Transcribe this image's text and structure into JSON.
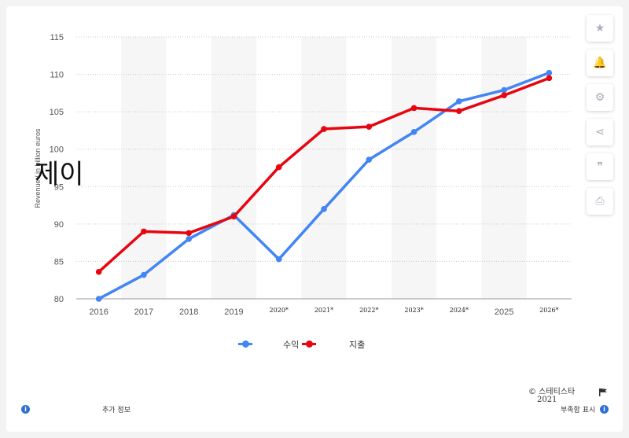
{
  "overlay_text": "제이",
  "toolbar": {
    "items": [
      {
        "icon": "star-icon",
        "glyph": "★"
      },
      {
        "icon": "bell-icon",
        "glyph": "🔔"
      },
      {
        "icon": "gear-icon",
        "glyph": "⚙"
      },
      {
        "icon": "share-icon",
        "glyph": "⋖"
      },
      {
        "icon": "quote-icon",
        "glyph": "❞"
      },
      {
        "icon": "print-icon",
        "glyph": "⎙"
      }
    ]
  },
  "legend": {
    "series1_label": "수익",
    "series2_label": "지출"
  },
  "footer": {
    "copyright": "© 스테티스타",
    "year": "2021",
    "additional_info": "추가 정보",
    "show_source": "부족함 표시"
  },
  "colors": {
    "series1": "#4285f4",
    "series2": "#e8050f",
    "grid": "#c8c8c8",
    "band": "#f6f6f6"
  },
  "chart_data": {
    "type": "line",
    "title": "",
    "ylabel": "Revenue / in billion euros",
    "xlabel": "",
    "ylim": [
      80,
      115
    ],
    "yticks": [
      80,
      85,
      90,
      95,
      100,
      105,
      110,
      115
    ],
    "categories": [
      "2016",
      "2017",
      "2018",
      "2019",
      "2020*",
      "2021*",
      "2022*",
      "2023*",
      "2024*",
      "2025",
      "2026*"
    ],
    "series": [
      {
        "name": "수익",
        "values": [
          80.0,
          83.2,
          88.0,
          91.2,
          85.3,
          92.0,
          98.6,
          102.3,
          106.4,
          107.9,
          110.2
        ]
      },
      {
        "name": "지출",
        "values": [
          83.6,
          89.0,
          88.8,
          91.0,
          97.6,
          102.7,
          103.0,
          105.5,
          105.1,
          107.2,
          109.5
        ]
      }
    ],
    "grid": true,
    "legend_position": "bottom"
  }
}
